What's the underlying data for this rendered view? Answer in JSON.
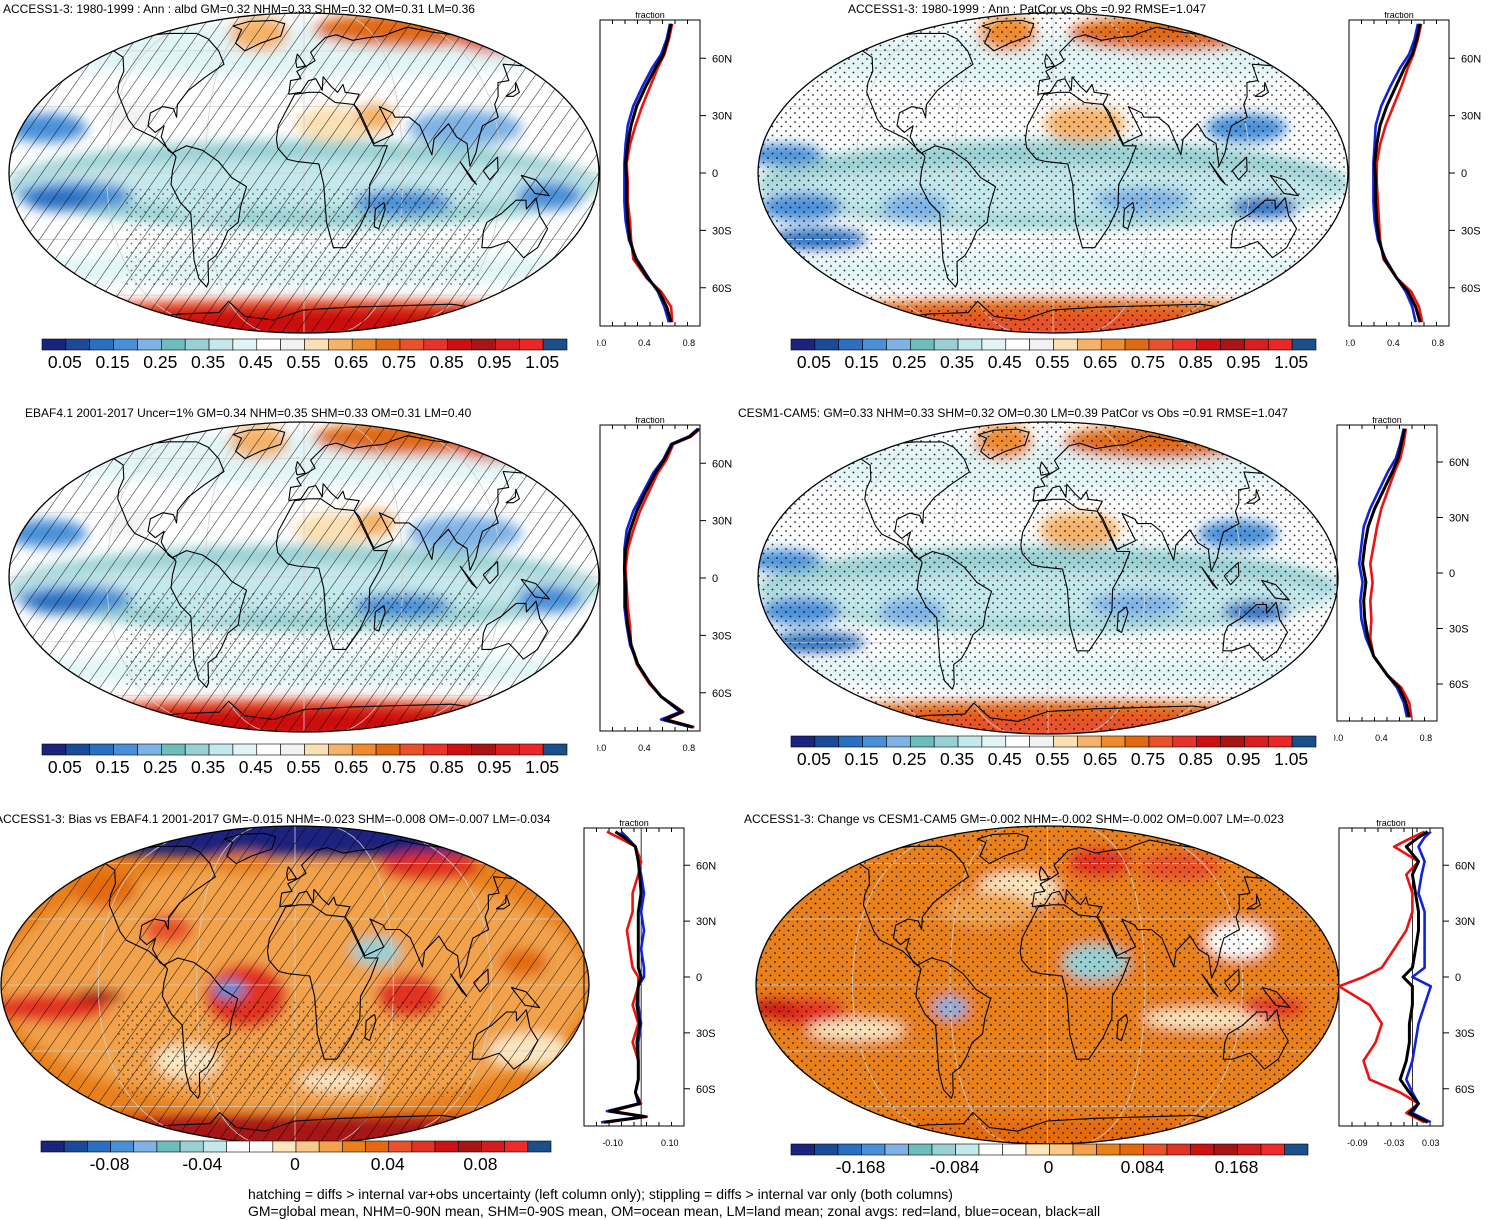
{
  "footnote": {
    "line1": "hatching = diffs > internal var+obs uncertainty (left column only); stippling = diffs > internal var only (both columns)",
    "line2": "GM=global mean, NHM=0-90N mean, SHM=0-90S mean, OM=ocean mean, LM=land mean; zonal avgs: red=land, blue=ocean, black=all"
  },
  "colors": {
    "land_line": "#ee1111",
    "ocean_line": "#1122dd",
    "all_line": "#000000"
  },
  "chart_data": [
    {
      "type": "heatmap",
      "title": "ACCESS1-3: 1980-1999 : Ann : albd GM=0.32 NHM=0.33 SHM=0.32 OM=0.31 LM=0.36",
      "colorbar_labels": [
        "0.05",
        "0.15",
        "0.25",
        "0.35",
        "0.45",
        "0.55",
        "0.65",
        "0.75",
        "0.85",
        "0.95",
        "1.05"
      ],
      "colorbar_range": [
        0.0,
        1.1
      ],
      "overlay": "hatching",
      "zonal": {
        "xlabel": "fraction",
        "xlim": [
          0.0,
          0.9
        ],
        "xticks": [
          "0.0",
          "0.4",
          "0.8"
        ],
        "ylim": [
          -80,
          80
        ],
        "yticks": [
          "60N",
          "30N",
          "0",
          "30S",
          "60S"
        ],
        "lat": [
          -78,
          -70,
          -62,
          -55,
          -45,
          -35,
          -25,
          -15,
          -5,
          5,
          15,
          25,
          35,
          45,
          55,
          62,
          70,
          78
        ],
        "series": [
          {
            "name": "land",
            "values": [
              0.65,
              0.64,
              0.55,
              0.42,
              0.3,
              0.28,
              0.27,
              0.25,
              0.25,
              0.24,
              0.27,
              0.32,
              0.38,
              0.45,
              0.52,
              0.58,
              0.62,
              0.65
            ]
          },
          {
            "name": "ocean",
            "values": [
              0.62,
              0.58,
              0.52,
              0.44,
              0.33,
              0.26,
              0.23,
              0.22,
              0.22,
              0.22,
              0.23,
              0.25,
              0.3,
              0.38,
              0.47,
              0.55,
              0.6,
              0.63
            ]
          },
          {
            "name": "all",
            "values": [
              0.64,
              0.6,
              0.53,
              0.43,
              0.32,
              0.27,
              0.25,
              0.24,
              0.24,
              0.23,
              0.25,
              0.28,
              0.33,
              0.41,
              0.5,
              0.57,
              0.61,
              0.64
            ]
          }
        ]
      }
    },
    {
      "type": "heatmap",
      "title": "ACCESS1-3: 1980-1999 : Ann : PatCor vs Obs =0.92 RMSE=1.047",
      "colorbar_labels": [
        "0.05",
        "0.15",
        "0.25",
        "0.35",
        "0.45",
        "0.55",
        "0.65",
        "0.75",
        "0.85",
        "0.95",
        "1.05"
      ],
      "colorbar_range": [
        0.0,
        1.1
      ],
      "overlay": "stippling",
      "zonal": {
        "xlabel": "fraction",
        "xlim": [
          0.0,
          0.9
        ],
        "xticks": [
          "0.0",
          "0.4",
          "0.8"
        ],
        "ylim": [
          -80,
          80
        ],
        "yticks": [
          "60N",
          "30N",
          "0",
          "30S",
          "60S"
        ],
        "lat": [
          -78,
          -70,
          -62,
          -55,
          -45,
          -35,
          -25,
          -15,
          -5,
          5,
          15,
          25,
          35,
          45,
          55,
          62,
          70,
          78
        ],
        "series": [
          {
            "name": "land",
            "values": [
              0.66,
              0.63,
              0.56,
              0.43,
              0.31,
              0.28,
              0.27,
              0.26,
              0.25,
              0.25,
              0.28,
              0.33,
              0.4,
              0.47,
              0.53,
              0.58,
              0.62,
              0.65
            ]
          },
          {
            "name": "ocean",
            "values": [
              0.6,
              0.57,
              0.51,
              0.43,
              0.33,
              0.26,
              0.23,
              0.22,
              0.22,
              0.22,
              0.23,
              0.24,
              0.29,
              0.37,
              0.46,
              0.54,
              0.59,
              0.62
            ]
          },
          {
            "name": "all",
            "values": [
              0.64,
              0.6,
              0.53,
              0.43,
              0.32,
              0.27,
              0.25,
              0.24,
              0.24,
              0.23,
              0.25,
              0.28,
              0.34,
              0.42,
              0.5,
              0.57,
              0.61,
              0.64
            ]
          }
        ]
      }
    },
    {
      "type": "heatmap",
      "title": "EBAF4.1 2001-2017 Uncer=1% GM=0.34 NHM=0.35 SHM=0.33 OM=0.31 LM=0.40",
      "colorbar_labels": [
        "0.05",
        "0.15",
        "0.25",
        "0.35",
        "0.45",
        "0.55",
        "0.65",
        "0.75",
        "0.85",
        "0.95",
        "1.05"
      ],
      "colorbar_range": [
        0.0,
        1.1
      ],
      "overlay": "hatching",
      "zonal": {
        "xlabel": "fraction",
        "xlim": [
          0.0,
          0.9
        ],
        "xticks": [
          "0.0",
          "0.4",
          "0.8"
        ],
        "ylim": [
          -80,
          80
        ],
        "yticks": [
          "60N",
          "30N",
          "0",
          "30S",
          "60S"
        ],
        "lat": [
          -78,
          -74,
          -70,
          -62,
          -55,
          -45,
          -35,
          -25,
          -15,
          -5,
          5,
          15,
          25,
          35,
          45,
          55,
          62,
          70,
          74,
          78
        ],
        "series": [
          {
            "name": "land",
            "values": [
              0.85,
              0.6,
              0.75,
              0.55,
              0.44,
              0.33,
              0.28,
              0.27,
              0.25,
              0.24,
              0.23,
              0.25,
              0.3,
              0.36,
              0.44,
              0.52,
              0.6,
              0.66,
              0.82,
              0.9
            ]
          },
          {
            "name": "ocean",
            "values": [
              0.82,
              0.55,
              0.72,
              0.55,
              0.45,
              0.34,
              0.27,
              0.24,
              0.22,
              0.22,
              0.22,
              0.22,
              0.24,
              0.3,
              0.39,
              0.48,
              0.57,
              0.64,
              0.8,
              0.88
            ]
          },
          {
            "name": "all",
            "values": [
              0.84,
              0.58,
              0.74,
              0.55,
              0.45,
              0.34,
              0.28,
              0.25,
              0.23,
              0.23,
              0.22,
              0.23,
              0.27,
              0.33,
              0.41,
              0.5,
              0.58,
              0.65,
              0.81,
              0.89
            ]
          }
        ]
      }
    },
    {
      "type": "heatmap",
      "title": "CESM1-CAM5: GM=0.33 NHM=0.33 SHM=0.32 OM=0.30 LM=0.39 PatCor vs Obs =0.91 RMSE=1.047",
      "colorbar_labels": [
        "0.05",
        "0.15",
        "0.25",
        "0.35",
        "0.45",
        "0.55",
        "0.65",
        "0.75",
        "0.85",
        "0.95",
        "1.05"
      ],
      "colorbar_range": [
        0.0,
        1.1
      ],
      "overlay": "stippling",
      "zonal": {
        "xlabel": "fraction",
        "xlim": [
          0.0,
          0.9
        ],
        "xticks": [
          "0.0",
          "0.4",
          "0.8"
        ],
        "ylim": [
          -80,
          80
        ],
        "yticks": [
          "60N",
          "30N",
          "0",
          "30S",
          "60S"
        ],
        "lat": [
          -78,
          -70,
          -62,
          -55,
          -45,
          -35,
          -25,
          -15,
          -5,
          5,
          15,
          25,
          35,
          45,
          55,
          62,
          70,
          78
        ],
        "series": [
          {
            "name": "land",
            "values": [
              0.67,
              0.65,
              0.58,
              0.45,
              0.33,
              0.3,
              0.31,
              0.3,
              0.32,
              0.3,
              0.33,
              0.36,
              0.4,
              0.46,
              0.52,
              0.57,
              0.6,
              0.62
            ]
          },
          {
            "name": "ocean",
            "values": [
              0.63,
              0.6,
              0.54,
              0.45,
              0.33,
              0.26,
              0.22,
              0.21,
              0.23,
              0.2,
              0.22,
              0.24,
              0.3,
              0.38,
              0.46,
              0.53,
              0.57,
              0.6
            ]
          },
          {
            "name": "all",
            "values": [
              0.65,
              0.62,
              0.56,
              0.45,
              0.33,
              0.28,
              0.25,
              0.24,
              0.26,
              0.23,
              0.25,
              0.28,
              0.34,
              0.42,
              0.5,
              0.55,
              0.58,
              0.61
            ]
          }
        ]
      }
    },
    {
      "type": "heatmap",
      "title": "ACCESS1-3: Bias vs EBAF4.1 2001-2017 GM=-0.015 NHM=-0.023 SHM=-0.008 OM=-0.007 LM=-0.034",
      "colorbar_labels": [
        "-0.08",
        "-0.04",
        "0",
        "0.04",
        "0.08"
      ],
      "colorbar_range": [
        -0.11,
        0.11
      ],
      "overlay": "hatching",
      "zonal": {
        "xlabel": "fraction",
        "xlim": [
          -0.2,
          0.15
        ],
        "xticks": [
          "-0.10",
          "0.10"
        ],
        "ylim": [
          -80,
          80
        ],
        "yticks": [
          "60N",
          "30N",
          "0",
          "30S",
          "60S"
        ],
        "lat": [
          -78,
          -75,
          -72,
          -68,
          -62,
          -55,
          -45,
          -35,
          -25,
          -15,
          -5,
          0,
          5,
          15,
          25,
          35,
          45,
          55,
          62,
          70,
          75,
          78
        ],
        "series": [
          {
            "name": "land",
            "values": [
              -0.12,
              0.02,
              -0.1,
              0.0,
              -0.02,
              -0.01,
              -0.01,
              -0.03,
              -0.01,
              -0.03,
              -0.01,
              -0.01,
              -0.03,
              -0.04,
              -0.05,
              -0.03,
              -0.03,
              -0.01,
              0.0,
              -0.02,
              -0.08,
              -0.12
            ]
          },
          {
            "name": "ocean",
            "values": [
              -0.14,
              0.01,
              -0.12,
              -0.01,
              -0.02,
              -0.01,
              -0.01,
              -0.01,
              0.0,
              -0.01,
              -0.01,
              0.01,
              0.01,
              0.0,
              0.01,
              0.0,
              0.01,
              0.0,
              -0.01,
              -0.02,
              -0.05,
              -0.07
            ]
          },
          {
            "name": "all",
            "values": [
              -0.13,
              0.015,
              -0.11,
              -0.005,
              -0.02,
              -0.01,
              -0.01,
              -0.015,
              -0.005,
              -0.015,
              -0.01,
              0.0,
              -0.01,
              -0.01,
              -0.01,
              -0.01,
              0.0,
              -0.005,
              -0.01,
              -0.02,
              -0.06,
              -0.09
            ]
          }
        ]
      }
    },
    {
      "type": "heatmap",
      "title": "ACCESS1-3: Change vs CESM1-CAM5 GM=-0.002 NHM=-0.002 SHM=-0.002 OM=0.007 LM=-0.023",
      "colorbar_labels": [
        "-0.168",
        "-0.084",
        "0",
        "0.084",
        "0.168"
      ],
      "colorbar_range": [
        -0.231,
        0.231
      ],
      "overlay": "stippling",
      "zonal": {
        "xlabel": "fraction",
        "xlim": [
          -0.12,
          0.05
        ],
        "xticks": [
          "-0.09",
          "-0.03",
          "0.03"
        ],
        "ylim": [
          -80,
          80
        ],
        "yticks": [
          "60N",
          "30N",
          "0",
          "30S",
          "60S"
        ],
        "lat": [
          -78,
          -73,
          -68,
          -62,
          -55,
          -45,
          -35,
          -25,
          -15,
          -5,
          0,
          5,
          15,
          25,
          35,
          45,
          55,
          62,
          70,
          75,
          78
        ],
        "series": [
          {
            "name": "land",
            "values": [
              0.02,
              -0.01,
              0.01,
              -0.02,
              -0.07,
              -0.08,
              -0.06,
              -0.05,
              -0.07,
              -0.12,
              -0.08,
              -0.05,
              -0.03,
              -0.01,
              0.0,
              0.0,
              -0.01,
              0.01,
              -0.03,
              0.0,
              0.02
            ]
          },
          {
            "name": "ocean",
            "values": [
              0.03,
              0.0,
              0.01,
              0.0,
              -0.01,
              0.0,
              0.005,
              0.01,
              0.02,
              0.03,
              0.0,
              0.02,
              0.02,
              0.02,
              0.02,
              0.01,
              0.015,
              0.02,
              0.01,
              0.02,
              0.03
            ]
          },
          {
            "name": "all",
            "values": [
              0.025,
              -0.005,
              0.01,
              -0.005,
              -0.02,
              -0.01,
              -0.005,
              -0.005,
              0.0,
              0.0,
              -0.015,
              0.0,
              0.005,
              0.01,
              0.01,
              0.005,
              0.0,
              0.01,
              -0.01,
              0.01,
              0.025
            ]
          }
        ]
      }
    }
  ]
}
